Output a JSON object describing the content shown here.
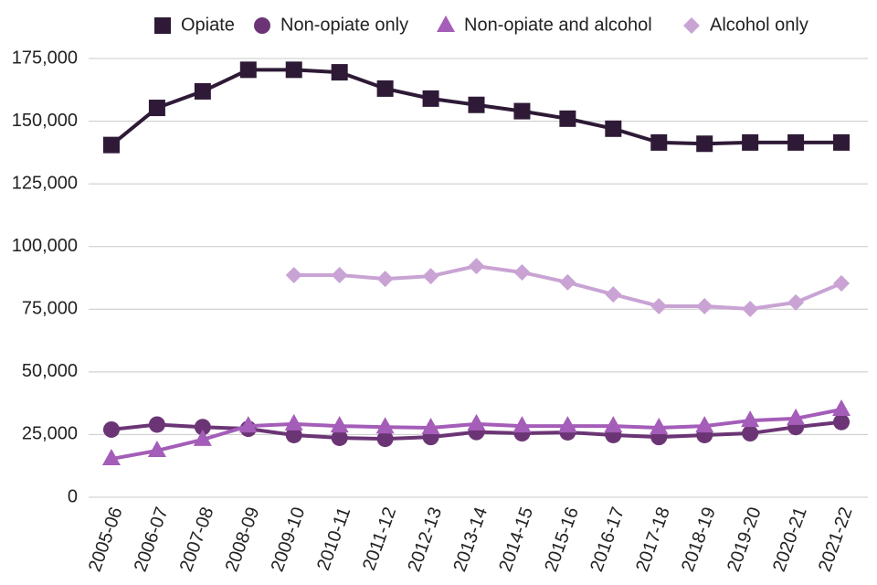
{
  "chart_data": {
    "type": "line",
    "categories": [
      "2005-06",
      "2006-07",
      "2007-08",
      "2008-09",
      "2009-10",
      "2010-11",
      "2011-12",
      "2012-13",
      "2013-14",
      "2014-15",
      "2015-16",
      "2016-17",
      "2017-18",
      "2018-19",
      "2019-20",
      "2020-21",
      "2021-22"
    ],
    "series": [
      {
        "name": "Opiate",
        "color": "#2e1a36",
        "marker": "square",
        "values": [
          140500,
          155300,
          161900,
          170500,
          170500,
          169500,
          163000,
          159000,
          156500,
          154000,
          151000,
          147000,
          141500,
          141000,
          141500,
          141500,
          141500
        ]
      },
      {
        "name": "Non-opiate only",
        "color": "#6b3575",
        "marker": "circle",
        "values": [
          27000,
          29000,
          28000,
          27300,
          24800,
          23700,
          23300,
          24000,
          26000,
          25500,
          25900,
          24800,
          24000,
          24800,
          25500,
          28000,
          30000
        ]
      },
      {
        "name": "Non-opiate and alcohol",
        "color": "#a45db8",
        "marker": "triangle",
        "values": [
          15300,
          18600,
          23000,
          28400,
          29200,
          28400,
          28000,
          27700,
          29200,
          28400,
          28400,
          28400,
          27700,
          28400,
          30600,
          31400,
          35000
        ]
      },
      {
        "name": "Alcohol only",
        "color": "#c9a3d4",
        "marker": "diamond",
        "values": [
          null,
          null,
          null,
          null,
          88600,
          88600,
          87100,
          88200,
          92200,
          89700,
          85700,
          80900,
          76200,
          76200,
          75100,
          77700,
          85300
        ]
      }
    ],
    "ylim": [
      0,
      175000
    ],
    "yticks": [
      0,
      {
        "value": 25000,
        "label": "25,000"
      },
      {
        "value": 50000,
        "label": "50,000"
      },
      {
        "value": 75000,
        "label": "75,000"
      },
      {
        "value": 100000,
        "label": "100,000"
      },
      {
        "value": 125000,
        "label": "125,000"
      },
      {
        "value": 150000,
        "label": "150,000"
      },
      {
        "value": 175000,
        "label": "175,000"
      }
    ],
    "grid": true,
    "legend": "top"
  }
}
